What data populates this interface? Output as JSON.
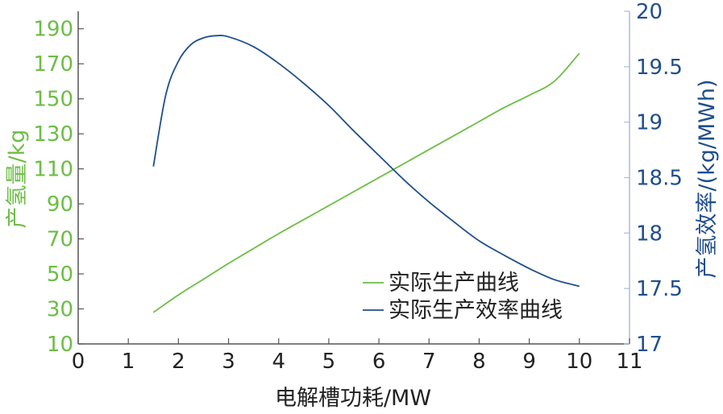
{
  "chart_data": {
    "type": "line",
    "xlabel": "电解槽功耗/MW",
    "ylabel_left": "产氢量/kg",
    "ylabel_right": "产氢效率/(kg/MWh)",
    "xlim": [
      0,
      11
    ],
    "ylim_left": [
      10,
      200
    ],
    "ylim_right": [
      17,
      20
    ],
    "x_ticks": [
      "0",
      "1",
      "2",
      "3",
      "4",
      "5",
      "6",
      "7",
      "8",
      "9",
      "10",
      "11"
    ],
    "y_ticks_left": [
      "10",
      "30",
      "50",
      "70",
      "90",
      "110",
      "130",
      "150",
      "170",
      "190"
    ],
    "y_ticks_right": [
      "17",
      "17.5",
      "18",
      "18.5",
      "19",
      "19.5",
      "20"
    ],
    "legend_position": "lower-right",
    "series": [
      {
        "name": "实际生产曲线",
        "axis": "left",
        "color": "#6cbd45",
        "x": [
          1.5,
          2,
          2.5,
          3,
          3.5,
          4,
          4.5,
          5,
          5.5,
          6,
          6.5,
          7,
          7.5,
          8,
          8.5,
          9,
          9.5,
          10
        ],
        "y": [
          28,
          38,
          47,
          56,
          64.5,
          73,
          81,
          89,
          97,
          105,
          113,
          121,
          129,
          137,
          145,
          152,
          160,
          176
        ]
      },
      {
        "name": "实际生产效率曲线",
        "axis": "right",
        "color": "#1f4e8c",
        "x": [
          1.5,
          1.75,
          2,
          2.25,
          2.5,
          2.75,
          3,
          3.5,
          4,
          4.5,
          5,
          5.5,
          6,
          6.5,
          7,
          7.5,
          8,
          8.5,
          9,
          9.5,
          10
        ],
        "y": [
          18.6,
          19.25,
          19.55,
          19.7,
          19.76,
          19.78,
          19.77,
          19.68,
          19.53,
          19.35,
          19.15,
          18.92,
          18.7,
          18.48,
          18.28,
          18.1,
          17.93,
          17.8,
          17.68,
          17.58,
          17.52
        ]
      }
    ]
  }
}
